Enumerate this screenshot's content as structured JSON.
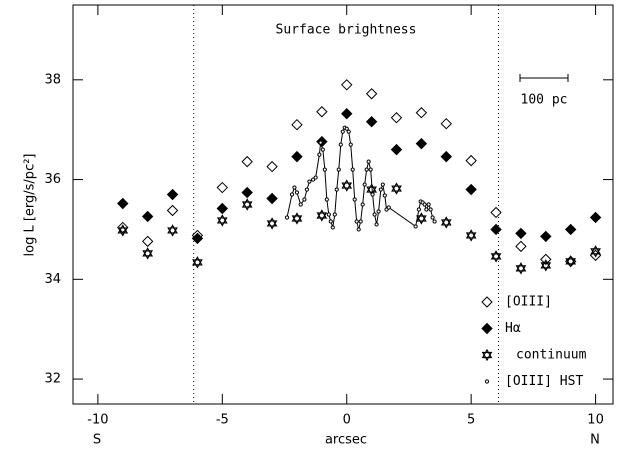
{
  "chart_data": {
    "type": "scatter",
    "title": "Surface brightness",
    "x_label": "arcsec",
    "y_label": "log L [erg/s/pc²]",
    "x_left_label": "S",
    "x_right_label": "N",
    "xlim": [
      -11,
      10.7
    ],
    "ylim": [
      31.5,
      39.5
    ],
    "xticks": [
      -10,
      -5,
      0,
      5,
      10
    ],
    "yticks": [
      32,
      34,
      36,
      38
    ],
    "vlines": [
      -6.15,
      6.1
    ],
    "scale_bar_label": "100 pc",
    "legend": "lower right",
    "series": [
      {
        "name": "[OIII]",
        "marker": "diamond-open",
        "color": "#000000",
        "x": [
          -9,
          -8,
          -7,
          -6,
          -5,
          -4,
          -3,
          -2,
          -1,
          0,
          1,
          2,
          3,
          4,
          5,
          6,
          7,
          8,
          9,
          10
        ],
        "values": [
          35.04,
          34.76,
          35.38,
          34.88,
          35.84,
          36.36,
          36.26,
          37.1,
          37.36,
          37.9,
          37.72,
          37.24,
          37.34,
          37.12,
          36.38,
          35.34,
          34.66,
          34.4,
          34.36,
          34.48
        ]
      },
      {
        "name": "Hα",
        "marker": "diamond",
        "color": "#000000",
        "x": [
          -9,
          -8,
          -7,
          -6,
          -5,
          -4,
          -3,
          -2,
          -1,
          0,
          1,
          2,
          3,
          4,
          5,
          6,
          7,
          8,
          9,
          10
        ],
        "values": [
          35.52,
          35.26,
          35.7,
          34.82,
          35.42,
          35.74,
          35.62,
          36.46,
          36.76,
          37.32,
          37.16,
          36.6,
          36.72,
          36.46,
          35.8,
          35.0,
          34.92,
          34.86,
          35.0,
          35.24
        ]
      },
      {
        "name": "continuum",
        "marker": "star-open",
        "color": "#000000",
        "x": [
          -9,
          -8,
          -7,
          -6,
          -5,
          -4,
          -3,
          -2,
          -1,
          0,
          1,
          2,
          3,
          4,
          5,
          6,
          7,
          8,
          9,
          10
        ],
        "values": [
          34.98,
          34.52,
          34.98,
          34.34,
          35.18,
          35.5,
          35.12,
          35.22,
          35.28,
          35.88,
          35.8,
          35.82,
          35.22,
          35.14,
          34.88,
          34.46,
          34.22,
          34.28,
          34.36,
          34.56
        ]
      },
      {
        "name": "[OIII] HST",
        "marker": "circle-line",
        "color": "#000000",
        "x": [
          -2.4,
          -2.2,
          -2.1,
          -2.0,
          -1.85,
          -1.7,
          -1.6,
          -1.5,
          -1.35,
          -1.25,
          -1.1,
          -1.05,
          -0.96,
          -0.88,
          -0.8,
          -0.72,
          -0.64,
          -0.56,
          -0.48,
          -0.4,
          -0.32,
          -0.24,
          -0.16,
          -0.08,
          0,
          0.08,
          0.16,
          0.24,
          0.32,
          0.4,
          0.48,
          0.56,
          0.64,
          0.72,
          0.8,
          0.88,
          0.96,
          1.04,
          1.12,
          1.2,
          1.28,
          1.37,
          1.45,
          1.53,
          1.6,
          1.69,
          2.77,
          2.9,
          2.97,
          3.05,
          3.13,
          3.2,
          3.29,
          3.37,
          3.45,
          3.53
        ],
        "values": [
          35.24,
          35.7,
          35.84,
          35.74,
          35.5,
          35.6,
          35.8,
          35.96,
          36.0,
          36.04,
          36.5,
          36.74,
          36.6,
          36.2,
          35.6,
          35.3,
          35.16,
          35.04,
          35.3,
          35.8,
          36.2,
          36.7,
          36.96,
          37.04,
          37.02,
          36.96,
          36.7,
          36.2,
          35.6,
          35.16,
          35.0,
          35.16,
          35.5,
          35.9,
          36.2,
          36.36,
          36.2,
          35.7,
          35.3,
          35.1,
          35.36,
          35.8,
          35.9,
          35.68,
          35.4,
          35.44,
          35.06,
          35.4,
          35.56,
          35.54,
          35.5,
          35.4,
          35.5,
          35.4,
          35.24,
          35.16
        ]
      }
    ]
  }
}
